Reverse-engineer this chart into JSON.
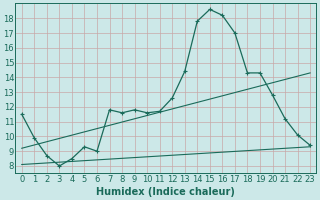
{
  "xlabel": "Humidex (Indice chaleur)",
  "ylabel": "",
  "xlim": [
    -0.5,
    23.5
  ],
  "ylim": [
    7.5,
    19.0
  ],
  "yticks": [
    8,
    9,
    10,
    11,
    12,
    13,
    14,
    15,
    16,
    17,
    18
  ],
  "xticks": [
    0,
    1,
    2,
    3,
    4,
    5,
    6,
    7,
    8,
    9,
    10,
    11,
    12,
    13,
    14,
    15,
    16,
    17,
    18,
    19,
    20,
    21,
    22,
    23
  ],
  "background_color": "#cce8e8",
  "grid_color": "#c8a8a8",
  "line_color": "#1a6b5a",
  "line1_x": [
    0,
    1,
    2,
    3,
    4,
    5,
    6,
    7,
    8,
    9,
    10,
    11,
    12,
    13,
    14,
    15,
    16,
    17,
    18,
    19,
    20,
    21,
    22,
    23
  ],
  "line1_y": [
    11.5,
    9.9,
    8.7,
    8.0,
    8.5,
    9.3,
    9.0,
    11.8,
    11.6,
    11.8,
    11.6,
    11.7,
    12.6,
    14.4,
    17.8,
    18.6,
    18.2,
    17.0,
    14.3,
    14.3,
    12.8,
    11.2,
    10.1,
    9.4
  ],
  "line2_x": [
    0,
    23
  ],
  "line2_y": [
    9.2,
    14.3
  ],
  "line3_x": [
    0,
    23
  ],
  "line3_y": [
    8.1,
    9.3
  ],
  "font_size_tick": 6,
  "font_size_xlabel": 7
}
